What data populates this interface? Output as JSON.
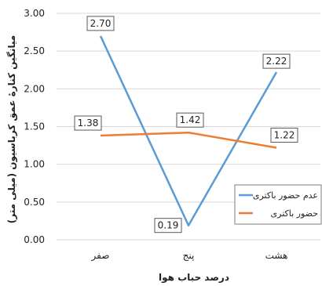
{
  "chart_data": {
    "type": "line",
    "title": "",
    "xlabel": "درصد حباب هوا",
    "ylabel": "میانگین کنارۀ عمق کرباسیون (میلی متر)",
    "categories": [
      "صفر",
      "پنج",
      "هشت"
    ],
    "ylim": [
      0,
      3
    ],
    "y_ticks": [
      "0.00",
      "0.50",
      "1.00",
      "1.50",
      "2.00",
      "2.50",
      "3.00"
    ],
    "grid": true,
    "legend_position": "right",
    "series": [
      {
        "name": "عدم حضور باکتری",
        "color": "#5b9bd5",
        "values": [
          2.7,
          0.19,
          2.22
        ],
        "labels": [
          "2.70",
          "0.19",
          "2.22"
        ]
      },
      {
        "name": "حضور باکتری",
        "color": "#ed7d31",
        "values": [
          1.38,
          1.42,
          1.22
        ],
        "labels": [
          "1.38",
          "1.42",
          "1.22"
        ]
      }
    ]
  }
}
